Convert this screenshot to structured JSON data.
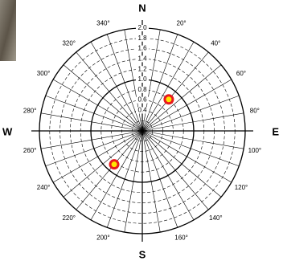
{
  "chart_data": {
    "type": "polar",
    "compass": {
      "N": "N",
      "E": "E",
      "S": "S",
      "W": "W"
    },
    "rlim": [
      0,
      2
    ],
    "rticks": [
      0.4,
      0.6,
      0.8,
      {
        "value": 1,
        "label": "1.0"
      },
      1.2,
      1.4,
      1.6,
      1.8,
      {
        "value": 2,
        "label": "2.0"
      }
    ],
    "rgrid": [
      0.2,
      0.4,
      0.6,
      0.8,
      1,
      1.2,
      1.4,
      1.6,
      1.8,
      2
    ],
    "rmajor": [
      1,
      2
    ],
    "thetagrid": [
      0,
      10,
      20,
      30,
      40,
      50,
      60,
      70,
      80,
      90,
      100,
      110,
      120,
      130,
      140,
      150,
      160,
      170,
      180,
      190,
      200,
      210,
      220,
      230,
      240,
      250,
      260,
      270,
      280,
      290,
      300,
      310,
      320,
      330,
      340,
      350
    ],
    "thetaticks": [
      {
        "value": 20,
        "label": "20°"
      },
      {
        "value": 40,
        "label": "40°"
      },
      {
        "value": 60,
        "label": "60°"
      },
      {
        "value": 80,
        "label": "80°"
      },
      {
        "value": 100,
        "label": "100°"
      },
      {
        "value": 120,
        "label": "120°"
      },
      {
        "value": 140,
        "label": "140°"
      },
      {
        "value": 160,
        "label": "160°"
      },
      {
        "value": 200,
        "label": "200°"
      },
      {
        "value": 220,
        "label": "220°"
      },
      {
        "value": 240,
        "label": "240°"
      },
      {
        "value": 260,
        "label": "260°"
      },
      {
        "value": 280,
        "label": "280°"
      },
      {
        "value": 300,
        "label": "300°"
      },
      {
        "value": 320,
        "label": "320°"
      },
      {
        "value": 340,
        "label": "340°"
      }
    ],
    "series": [
      {
        "color": "#e8191c",
        "fill": "#ffe600",
        "r": [
          0.8,
          0.85
        ],
        "theta": [
          40,
          220
        ]
      }
    ]
  }
}
